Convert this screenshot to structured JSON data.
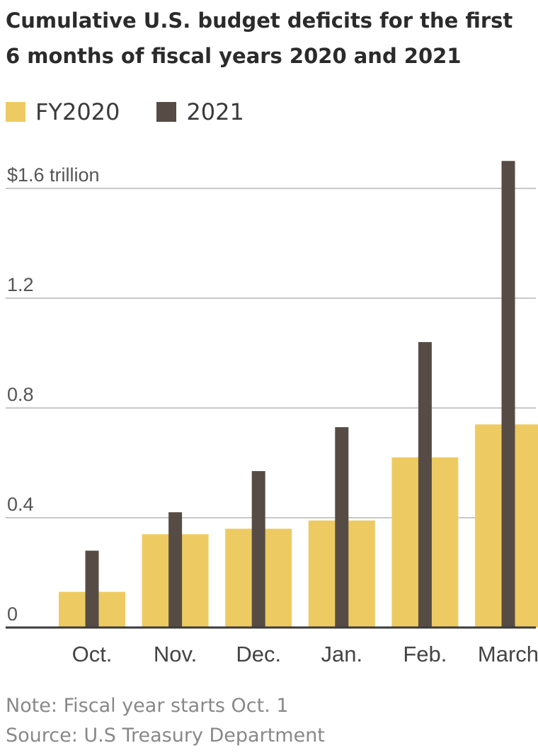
{
  "title": "Cumulative U.S. budget deficits for the first 6 months of fiscal years 2020 and 2021",
  "legend": [
    {
      "label": "FY2020",
      "color": "#eecb62"
    },
    {
      "label": "2021",
      "color": "#574c45"
    }
  ],
  "chart_data": {
    "type": "bar",
    "title": "Cumulative U.S. budget deficits for the first 6 months of fiscal years 2020 and 2021",
    "categories": [
      "Oct.",
      "Nov.",
      "Dec.",
      "Jan.",
      "Feb.",
      "March"
    ],
    "series": [
      {
        "name": "FY2020",
        "values": [
          0.13,
          0.34,
          0.36,
          0.39,
          0.62,
          0.74
        ],
        "color": "#eecb62"
      },
      {
        "name": "2021",
        "values": [
          0.28,
          0.42,
          0.57,
          0.73,
          1.04,
          1.7
        ],
        "color": "#574c45"
      }
    ],
    "yticks": [
      {
        "value": 0,
        "label": "0"
      },
      {
        "value": 0.4,
        "label": "0.4"
      },
      {
        "value": 0.8,
        "label": "0.8"
      },
      {
        "value": 1.2,
        "label": "1.2"
      },
      {
        "value": 1.6,
        "label": "$1.6 trillion"
      }
    ],
    "ylim": [
      0,
      1.6
    ],
    "xlabel": "",
    "ylabel": "",
    "grid": true,
    "legend_position": "top-left"
  },
  "notes": {
    "note": "Note: Fiscal year starts Oct. 1",
    "source": "Source: U.S Treasury Department"
  }
}
